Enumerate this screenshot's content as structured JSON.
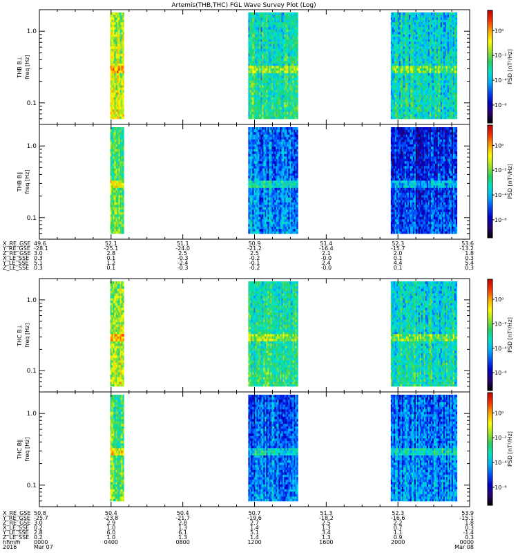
{
  "chart_data": {
    "type": "heatmap",
    "title": "Artemis(THB,THC) FGL Wave Survey Plot (Log)",
    "colorbar_label_html": "PSD [nT²/Hz]",
    "y_axis": {
      "scale": "log",
      "ylim": [
        0.05,
        2.0
      ],
      "ticks": [
        1.0,
        0.1
      ],
      "tick_labels": [
        "1.0",
        "0.1"
      ]
    },
    "x_axis": {
      "range_hhmm": [
        "0000",
        "0000"
      ],
      "ticks": [
        "0000",
        "0400",
        "0800",
        "1200",
        "1600",
        "2000",
        "0000"
      ],
      "date_labels": [
        "Mar 07",
        "Mar 08"
      ],
      "year_label": "2016"
    },
    "data_intervals_hours": [
      [
        3.95,
        4.75
      ],
      [
        11.65,
        14.4
      ],
      [
        19.6,
        23.3
      ]
    ],
    "panels": [
      {
        "name": "THB B⊥",
        "ylabel_line1": "THB B⊥",
        "ylabel_line2": "freq [Hz]",
        "colorbar_ticks": [
          "10⁰",
          "10⁻²",
          "10⁻⁴",
          "10⁻⁶"
        ],
        "relative_intensity": [
          0.66,
          0.48,
          0.44
        ]
      },
      {
        "name": "THB B∥",
        "ylabel_line1": "THB B∥",
        "ylabel_line2": "freq [Hz]",
        "colorbar_ticks": [
          "10⁰",
          "10⁻²",
          "10⁻⁴",
          "10⁻⁶"
        ],
        "relative_intensity": [
          0.58,
          0.32,
          0.24
        ]
      },
      {
        "name": "THC B⊥",
        "ylabel_line1": "THC B⊥",
        "ylabel_line2": "freq [Hz]",
        "colorbar_ticks": [
          "10⁰",
          "10⁻²",
          "10⁻⁴",
          "10⁻⁶"
        ],
        "relative_intensity": [
          0.66,
          0.5,
          0.46
        ]
      },
      {
        "name": "THC B∥",
        "ylabel_line1": "THC B∥",
        "ylabel_line2": "freq [Hz]",
        "colorbar_ticks": [
          "10⁰",
          "10⁻²",
          "10⁻⁴",
          "10⁻⁶"
        ],
        "relative_intensity": [
          0.56,
          0.3,
          0.32
        ]
      }
    ],
    "ephemeris_blocks": [
      {
        "rows": [
          {
            "label": "X_RE_GSE",
            "values": [
              "49.6",
              "52.1",
              "51.1",
              "50.9",
              "51.4",
              "52.3",
              "53.6"
            ]
          },
          {
            "label": "Y_RE_GSE",
            "values": [
              "-28.1",
              "-25.1",
              "-24.0",
              "-21.2",
              "-16.4",
              "-15.7",
              "-13.2"
            ]
          },
          {
            "label": "Z_RE_GSE",
            "values": [
              "3.0",
              "2.8",
              "2.5",
              "2.5",
              "2.1",
              "2.0",
              "1.8"
            ]
          },
          {
            "label": "X_LE_SSE",
            "values": [
              "0.3",
              "0.1",
              "-0.3",
              "-0.2",
              "-0.0",
              "0.1",
              "0.3"
            ]
          },
          {
            "label": "Y_LE_SSE",
            "values": [
              "5.1",
              "1.2",
              "-2.4",
              "-0.1",
              "2.4",
              "4.4",
              "5.4"
            ]
          },
          {
            "label": "Z_LE_SSE",
            "values": [
              "0.3",
              "0.1",
              "-0.3",
              "-0.2",
              "-0.0",
              "0.1",
              "0.3"
            ]
          }
        ]
      },
      {
        "rows": [
          {
            "label": "X_RE_GSE",
            "values": [
              "50.8",
              "50.4",
              "50.4",
              "50.7",
              "51.3",
              "52.3",
              "53.9"
            ]
          },
          {
            "label": "Y_RE_GSE",
            "values": [
              "-25.7",
              "-23.8",
              "-21.7",
              "-19.6",
              "-18.2",
              "-16.6",
              "-15.1"
            ]
          },
          {
            "label": "Z_RE_GSE",
            "values": [
              "3.0",
              "2.9",
              "2.8",
              "2.7",
              "2.5",
              "2.2",
              "1.8"
            ]
          },
          {
            "label": "X_LE_SSE",
            "values": [
              "0.2",
              "1.0",
              "1.3",
              "1.4",
              "1.3",
              "0.7",
              "0.3"
            ]
          },
          {
            "label": "Y_LE_SSE",
            "values": [
              "2.8",
              "6.0",
              "6.1",
              "5.1",
              "3.4",
              "1.1",
              "-1.4"
            ]
          },
          {
            "label": "Z_LE_SSE",
            "values": [
              "0.2",
              "1.0",
              "1.3",
              "1.4",
              "1.3",
              "0.9",
              "0.3"
            ]
          }
        ]
      }
    ],
    "time_row_label": "hhmm",
    "colormap": [
      "#000000",
      "#2a0070",
      "#0000c8",
      "#0050ff",
      "#00b4ff",
      "#00e6c8",
      "#28d264",
      "#a0e628",
      "#ffff00",
      "#ffaa00",
      "#ff3200",
      "#c80000"
    ]
  }
}
